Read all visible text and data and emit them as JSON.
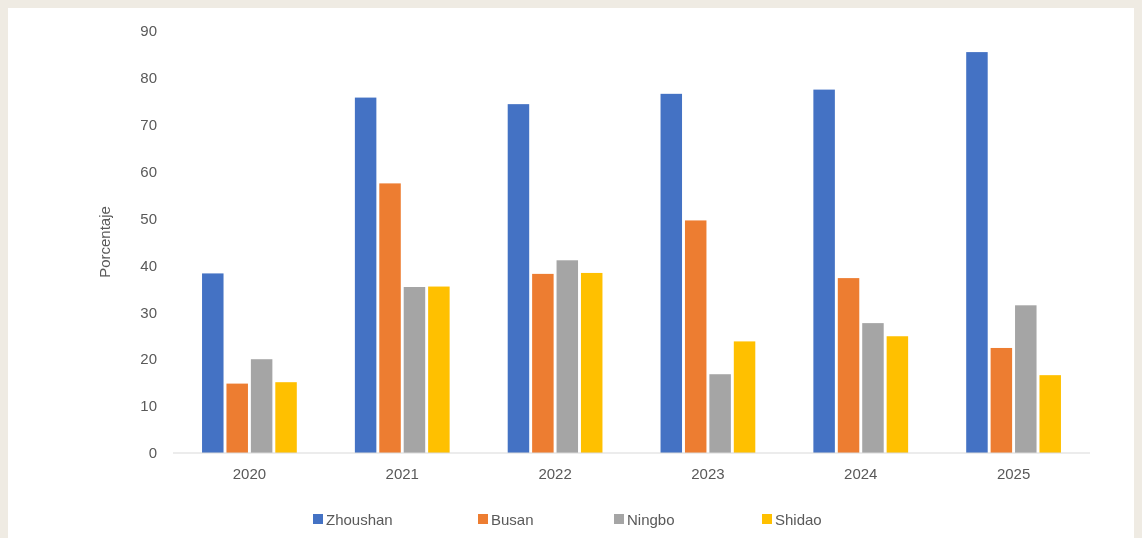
{
  "chart_data": {
    "type": "bar",
    "ylabel": "Porcentaje",
    "categories": [
      "2020",
      "2021",
      "2022",
      "2023",
      "2024",
      "2025"
    ],
    "series": [
      {
        "name": "Zhoushan",
        "color": "#4472c4",
        "values": [
          38.3,
          75.8,
          74.4,
          76.6,
          77.5,
          85.5
        ]
      },
      {
        "name": "Busan",
        "color": "#ed7d31",
        "values": [
          14.8,
          57.5,
          38.2,
          49.6,
          37.3,
          22.4
        ]
      },
      {
        "name": "Ningbo",
        "color": "#a5a5a5",
        "values": [
          20.0,
          35.4,
          41.1,
          16.8,
          27.7,
          31.5
        ]
      },
      {
        "name": "Shidao",
        "color": "#ffc000",
        "values": [
          15.1,
          35.5,
          38.4,
          23.8,
          24.9,
          16.6
        ]
      }
    ],
    "ylim": [
      0,
      90
    ],
    "yticks": [
      0,
      10,
      20,
      30,
      40,
      50,
      60,
      70,
      80,
      90
    ],
    "grid": false,
    "legend": "bottom"
  }
}
